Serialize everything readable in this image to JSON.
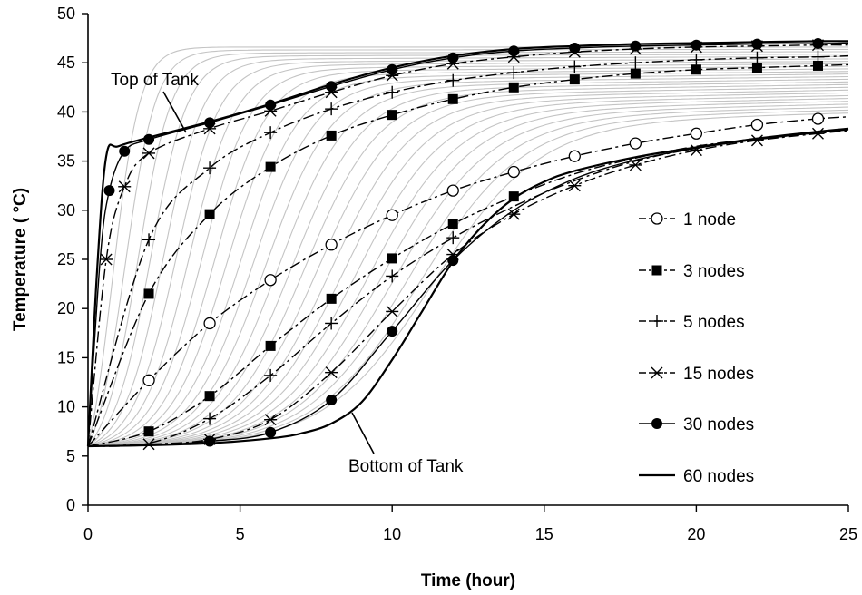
{
  "chart_data": {
    "type": "line",
    "title": "",
    "xlabel": "Time (hour)",
    "ylabel": "Temperature ( °C)",
    "xlim": [
      0,
      25
    ],
    "ylim": [
      0,
      50
    ],
    "xticks": [
      0,
      5,
      10,
      15,
      20,
      25
    ],
    "yticks": [
      0,
      5,
      10,
      15,
      20,
      25,
      30,
      35,
      40,
      45,
      50
    ],
    "grid": false,
    "legend_position": "right",
    "annotations": [
      {
        "text": "Top of Tank",
        "x": 3.1,
        "y": 41.0
      },
      {
        "text": "Bottom of Tank",
        "x": 8.8,
        "y": 7.5
      }
    ],
    "series": [
      {
        "name": "1 node",
        "marker": "open-circle",
        "dash": "dash-dot",
        "color": "#000000",
        "x": [
          0,
          2,
          4,
          6,
          8,
          10,
          12,
          14,
          16,
          18,
          20,
          22,
          24,
          25
        ],
        "y": [
          6.0,
          12.7,
          18.5,
          22.9,
          26.5,
          29.5,
          32.0,
          33.9,
          35.5,
          36.8,
          37.8,
          38.7,
          39.3,
          39.5
        ],
        "mx": [
          2,
          4,
          6,
          8,
          10,
          12,
          14,
          16,
          18,
          20,
          22,
          24
        ]
      },
      {
        "name": "3 nodes",
        "marker": "filled-square",
        "dash": "dash-dot",
        "color": "#000000",
        "x": [
          0,
          2,
          4,
          6,
          8,
          10,
          12,
          14,
          16,
          18,
          20,
          22,
          24,
          25
        ],
        "y": [
          6.0,
          7.5,
          11.1,
          16.2,
          21.0,
          25.1,
          28.6,
          31.4,
          33.7,
          35.3,
          36.5,
          37.3,
          38.0,
          38.3
        ],
        "mx": [
          2,
          4,
          6,
          8,
          10,
          12,
          14
        ]
      },
      {
        "name": "5 nodes",
        "marker": "plus",
        "dash": "dash-dot",
        "color": "#000000",
        "x": [
          0,
          2,
          4,
          6,
          8,
          10,
          12,
          14,
          16,
          18,
          20,
          22,
          24,
          25
        ],
        "y": [
          6.0,
          6.3,
          8.8,
          13.2,
          18.5,
          23.3,
          27.2,
          30.4,
          33.0,
          35.0,
          36.3,
          37.2,
          37.9,
          38.2
        ],
        "mx": [
          4,
          6,
          8,
          10,
          12
        ]
      },
      {
        "name": "15 nodes",
        "marker": "asterisk",
        "dash": "dash-dot",
        "color": "#000000",
        "x": [
          0,
          2,
          4,
          6,
          8,
          10,
          12,
          14,
          16,
          18,
          20,
          22,
          24,
          25
        ],
        "y": [
          6.0,
          6.2,
          6.7,
          8.7,
          13.5,
          19.7,
          25.5,
          29.6,
          32.5,
          34.6,
          36.1,
          37.1,
          37.8,
          38.1
        ],
        "mx": [
          2,
          4,
          6,
          8,
          10,
          12,
          14,
          16,
          18,
          20,
          22,
          24
        ]
      },
      {
        "name": "30 nodes",
        "marker": "filled-circle",
        "dash": "solid",
        "color": "#000000",
        "x": [
          0,
          2,
          4,
          6,
          8,
          10,
          12,
          14,
          16,
          18,
          20,
          22,
          24,
          25
        ],
        "y": [
          6.0,
          6.1,
          6.5,
          7.4,
          10.7,
          17.7,
          24.9,
          30.0,
          33.2,
          35.1,
          36.3,
          37.2,
          37.9,
          38.2
        ],
        "mx": [
          4,
          6,
          8,
          10,
          12
        ]
      },
      {
        "name": "60 nodes",
        "marker": "none",
        "dash": "solid",
        "color": "#000000",
        "x": [
          0,
          2,
          4,
          6,
          7,
          8,
          9,
          10,
          11,
          12,
          13,
          14,
          15,
          16,
          18,
          20,
          22,
          24,
          25
        ],
        "y": [
          6.0,
          6.1,
          6.3,
          6.8,
          7.3,
          8.3,
          10.5,
          14.8,
          19.8,
          24.8,
          28.5,
          31.2,
          32.9,
          34.0,
          35.4,
          36.4,
          37.3,
          38.0,
          38.3
        ],
        "mx": []
      },
      {
        "name": "",
        "marker": "filled-circle",
        "dash": "solid",
        "color": "#000000",
        "x": [
          0,
          0.4,
          0.7,
          1.2,
          2,
          4,
          6,
          8,
          10,
          12,
          14,
          16,
          18,
          20,
          22,
          24,
          25
        ],
        "y": [
          6.0,
          25.0,
          32.0,
          36.0,
          37.2,
          38.9,
          40.7,
          42.6,
          44.3,
          45.5,
          46.2,
          46.5,
          46.7,
          46.8,
          46.9,
          46.95,
          47.0
        ],
        "mx": [
          0.7,
          1.2,
          2,
          4,
          6,
          8,
          10,
          12,
          14,
          16,
          18,
          20,
          22,
          24
        ]
      },
      {
        "name": "",
        "marker": "none",
        "dash": "solid",
        "color": "#000000",
        "x": [
          0,
          0.3,
          0.6,
          1.0,
          2,
          4,
          6,
          8,
          10,
          12,
          14,
          16,
          18,
          20,
          22,
          24,
          25
        ],
        "y": [
          6.0,
          24.0,
          35.5,
          36.5,
          37.4,
          39.0,
          40.8,
          42.8,
          44.5,
          45.7,
          46.4,
          46.7,
          46.9,
          47.0,
          47.1,
          47.2,
          47.2
        ],
        "mx": []
      },
      {
        "name": "",
        "marker": "asterisk",
        "dash": "dash-dot",
        "color": "#000000",
        "x": [
          0,
          0.6,
          1.2,
          2,
          4,
          6,
          8,
          10,
          12,
          14,
          16,
          18,
          20,
          22,
          24,
          25
        ],
        "y": [
          6.0,
          25.0,
          32.4,
          35.8,
          38.3,
          40.1,
          42.0,
          43.7,
          44.9,
          45.6,
          46.1,
          46.4,
          46.6,
          46.7,
          46.8,
          46.8
        ],
        "mx": [
          0.6,
          1.2,
          2,
          4,
          6,
          8,
          10,
          12,
          14,
          16,
          18,
          20,
          22,
          24
        ]
      },
      {
        "name": "",
        "marker": "plus",
        "dash": "dash-dot",
        "color": "#000000",
        "x": [
          0,
          2,
          4,
          6,
          8,
          10,
          12,
          14,
          16,
          18,
          20,
          22,
          24,
          25
        ],
        "y": [
          6.0,
          27.0,
          34.3,
          37.9,
          40.3,
          42.0,
          43.2,
          44.0,
          44.6,
          45.0,
          45.3,
          45.5,
          45.6,
          45.7
        ],
        "mx": [
          2,
          4,
          6,
          8,
          10,
          12,
          14,
          16,
          18,
          20,
          22,
          24
        ]
      },
      {
        "name": "",
        "marker": "filled-square",
        "dash": "dash-dot",
        "color": "#000000",
        "x": [
          0,
          2,
          4,
          6,
          8,
          10,
          12,
          14,
          16,
          18,
          20,
          22,
          24,
          25
        ],
        "y": [
          6.0,
          21.5,
          29.6,
          34.4,
          37.6,
          39.7,
          41.3,
          42.5,
          43.3,
          43.9,
          44.3,
          44.5,
          44.7,
          44.8
        ],
        "mx": [
          2,
          4,
          6,
          8,
          10,
          12,
          14,
          16,
          18,
          20,
          22,
          24
        ]
      }
    ],
    "gray_curves": {
      "color": "#c4c4c4",
      "count": 26
    }
  }
}
